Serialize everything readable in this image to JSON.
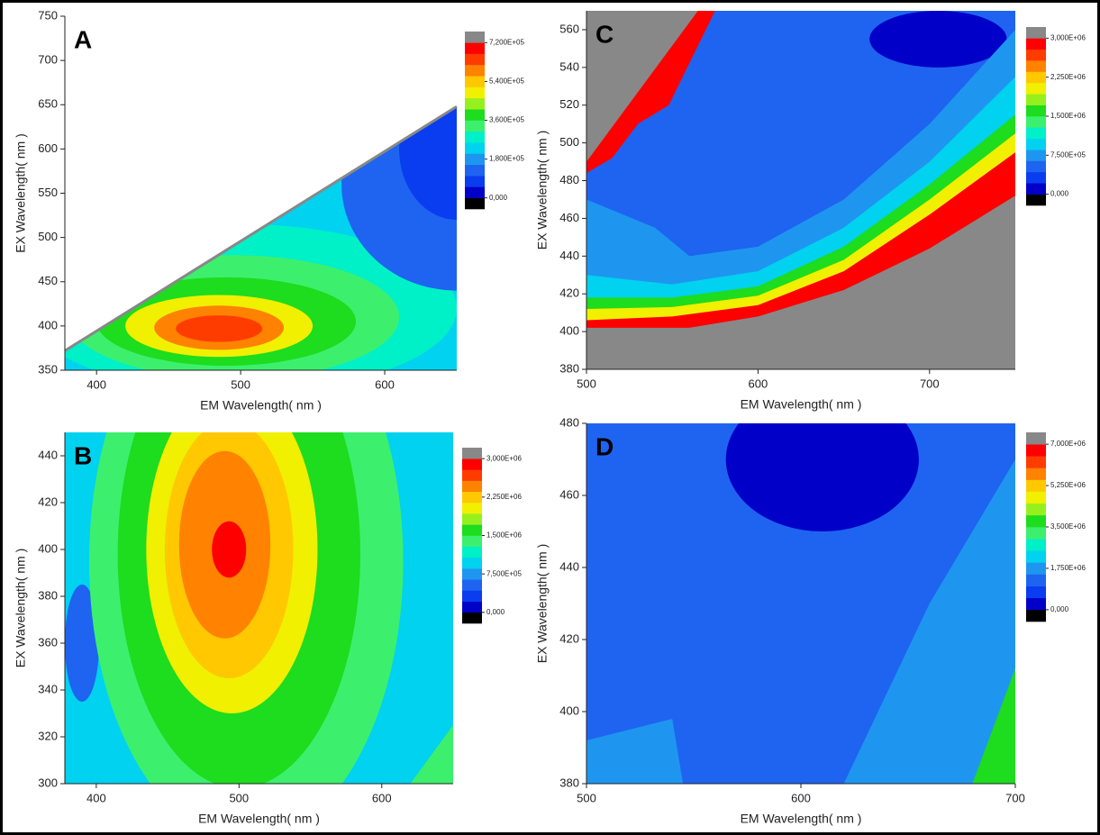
{
  "chart_data": [
    {
      "type": "contour",
      "title": "A",
      "xlabel": "EM Wavelength( nm )",
      "ylabel": "EX Wavelength( nm )",
      "xlim": [
        378,
        650
      ],
      "xticks": [
        400,
        500,
        600
      ],
      "ylim": [
        350,
        750
      ],
      "yticks": [
        350,
        400,
        450,
        500,
        550,
        600,
        650,
        700,
        750
      ],
      "colors": [
        "#000000",
        "#0000c8",
        "#0a3cf0",
        "#1e64f0",
        "#1e96f0",
        "#00d2f0",
        "#00f0c8",
        "#3cf06e",
        "#1edc1e",
        "#96f01e",
        "#f0f000",
        "#ffc800",
        "#ff8200",
        "#ff3c00",
        "#ff0000",
        "#888888"
      ],
      "cticks": [
        {
          "value": 0,
          "label": "0,000"
        },
        {
          "value": 180000,
          "label": "1,800E+05"
        },
        {
          "value": 360000,
          "label": "3,600E+05"
        },
        {
          "value": 540000,
          "label": "5,400E+05"
        },
        {
          "value": 720000,
          "label": "7,200E+05"
        }
      ]
    },
    {
      "type": "contour",
      "title": "B",
      "xlabel": "EM Wavelength( nm )",
      "ylabel": "EX Wavelength( nm )",
      "xlim": [
        378,
        650
      ],
      "xticks": [
        400,
        500,
        600
      ],
      "ylim": [
        300,
        450
      ],
      "yticks": [
        300,
        320,
        340,
        360,
        380,
        400,
        420,
        440
      ],
      "colors": [
        "#000000",
        "#0000c8",
        "#0a3cf0",
        "#1e64f0",
        "#1e96f0",
        "#00d2f0",
        "#00f0c8",
        "#3cf06e",
        "#1edc1e",
        "#96f01e",
        "#f0f000",
        "#ffc800",
        "#ff8200",
        "#ff3c00",
        "#ff0000",
        "#888888"
      ],
      "cticks": [
        {
          "value": 0,
          "label": "0,000"
        },
        {
          "value": 750000,
          "label": "7,500E+05"
        },
        {
          "value": 1500000,
          "label": "1,500E+06"
        },
        {
          "value": 2250000,
          "label": "2,250E+06"
        },
        {
          "value": 3000000,
          "label": "3,000E+06"
        }
      ]
    },
    {
      "type": "contour",
      "title": "C",
      "xlabel": "EM Wavelength( nm )",
      "ylabel": "EX Wavelength( nm )",
      "xlim": [
        500,
        750
      ],
      "xticks": [
        500,
        600,
        700
      ],
      "ylim": [
        380,
        570
      ],
      "yticks": [
        380,
        400,
        420,
        440,
        460,
        480,
        500,
        520,
        540,
        560
      ],
      "colors": [
        "#000000",
        "#0000c8",
        "#0a3cf0",
        "#1e64f0",
        "#1e96f0",
        "#00d2f0",
        "#00f0c8",
        "#3cf06e",
        "#1edc1e",
        "#96f01e",
        "#f0f000",
        "#ffc800",
        "#ff8200",
        "#ff3c00",
        "#ff0000",
        "#888888"
      ],
      "cticks": [
        {
          "value": 0,
          "label": "0,000"
        },
        {
          "value": 750000,
          "label": "7,500E+05"
        },
        {
          "value": 1500000,
          "label": "1,500E+06"
        },
        {
          "value": 2250000,
          "label": "2,250E+06"
        },
        {
          "value": 3000000,
          "label": "3,000E+06"
        }
      ]
    },
    {
      "type": "contour",
      "title": "D",
      "xlabel": "EM Wavelength( nm )",
      "ylabel": "EX Wavelength( nm )",
      "xlim": [
        500,
        700
      ],
      "xticks": [
        500,
        600,
        700
      ],
      "ylim": [
        380,
        480
      ],
      "yticks": [
        380,
        400,
        420,
        440,
        460,
        480
      ],
      "colors": [
        "#000000",
        "#0000c8",
        "#0a3cf0",
        "#1e64f0",
        "#1e96f0",
        "#00d2f0",
        "#00f0c8",
        "#3cf06e",
        "#1edc1e",
        "#96f01e",
        "#f0f000",
        "#ffc800",
        "#ff8200",
        "#ff3c00",
        "#ff0000",
        "#888888"
      ],
      "cticks": [
        {
          "value": 0,
          "label": "0,000"
        },
        {
          "value": 1750000,
          "label": "1,750E+06"
        },
        {
          "value": 3500000,
          "label": "3,500E+06"
        },
        {
          "value": 5250000,
          "label": "5,250E+06"
        },
        {
          "value": 7000000,
          "label": "7,000E+06"
        }
      ]
    }
  ]
}
